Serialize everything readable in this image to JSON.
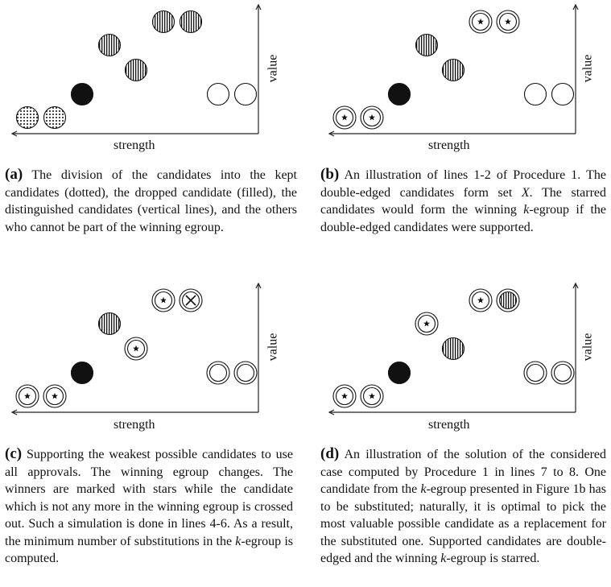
{
  "panels": [
    {
      "xlabel": "strength",
      "ylabel": "value",
      "caption_label": "(a)",
      "caption_html": "The division of the candidates into the kept candidates (dotted), the dropped candidate (filled), the distinguished candidates (vertical lines), and the others who cannot be part of the winning egroup.",
      "candidates": [
        {
          "style": "dotted",
          "ring": false,
          "mark": ""
        },
        {
          "style": "dotted",
          "ring": false,
          "mark": ""
        },
        {
          "style": "filled",
          "ring": false,
          "mark": ""
        },
        {
          "style": "vertical",
          "ring": false,
          "mark": ""
        },
        {
          "style": "vertical",
          "ring": false,
          "mark": ""
        },
        {
          "style": "vertical",
          "ring": false,
          "mark": ""
        },
        {
          "style": "vertical",
          "ring": false,
          "mark": ""
        },
        {
          "style": "empty",
          "ring": false,
          "mark": ""
        },
        {
          "style": "empty",
          "ring": false,
          "mark": ""
        }
      ]
    },
    {
      "xlabel": "strength",
      "ylabel": "value",
      "caption_label": "(b)",
      "caption_html": "An illustration of lines 1-2 of Procedure 1. The double-edged candidates form set <i>X</i>. The starred candidates would form the winning <i>k</i>-egroup if the double-edged candidates were supported.",
      "candidates": [
        {
          "style": "empty",
          "ring": true,
          "mark": "star"
        },
        {
          "style": "empty",
          "ring": true,
          "mark": "star"
        },
        {
          "style": "filled",
          "ring": false,
          "mark": ""
        },
        {
          "style": "vertical",
          "ring": false,
          "mark": ""
        },
        {
          "style": "vertical",
          "ring": false,
          "mark": ""
        },
        {
          "style": "empty",
          "ring": true,
          "mark": "star"
        },
        {
          "style": "empty",
          "ring": true,
          "mark": "star"
        },
        {
          "style": "empty",
          "ring": false,
          "mark": ""
        },
        {
          "style": "empty",
          "ring": false,
          "mark": ""
        }
      ]
    },
    {
      "xlabel": "strength",
      "ylabel": "value",
      "caption_label": "(c)",
      "caption_html": "Supporting the weakest possible candidates to use all approvals. The winning egroup changes. The winners are marked with stars while the candidate which is not any more in the winning egroup is crossed out. Such a simulation is done in lines 4-6. As a result, the minimum number of substitutions in the <i>k</i>-egroup is computed.",
      "candidates": [
        {
          "style": "empty",
          "ring": true,
          "mark": "star"
        },
        {
          "style": "empty",
          "ring": true,
          "mark": "star"
        },
        {
          "style": "filled",
          "ring": false,
          "mark": ""
        },
        {
          "style": "vertical",
          "ring": false,
          "mark": ""
        },
        {
          "style": "empty",
          "ring": true,
          "mark": "star"
        },
        {
          "style": "empty",
          "ring": true,
          "mark": "star"
        },
        {
          "style": "empty",
          "ring": true,
          "mark": "cross"
        },
        {
          "style": "empty",
          "ring": true,
          "mark": ""
        },
        {
          "style": "empty",
          "ring": true,
          "mark": ""
        }
      ]
    },
    {
      "xlabel": "strength",
      "ylabel": "value",
      "caption_label": "(d)",
      "caption_html": "An illustration of the solution of the considered case computed by Procedure 1 in lines 7 to 8. One candidate from the <i>k</i>-egroup presented in Figure 1b has to be substituted; naturally, it is optimal to pick the most valuable possible candidate as a replacement for the substituted one. Supported candidates are double-edged and the winning <i>k</i>-egroup is starred.",
      "candidates": [
        {
          "style": "empty",
          "ring": true,
          "mark": "star"
        },
        {
          "style": "empty",
          "ring": true,
          "mark": "star"
        },
        {
          "style": "filled",
          "ring": false,
          "mark": ""
        },
        {
          "style": "empty",
          "ring": true,
          "mark": "star"
        },
        {
          "style": "vertical",
          "ring": false,
          "mark": ""
        },
        {
          "style": "empty",
          "ring": true,
          "mark": "star"
        },
        {
          "style": "vertical",
          "ring": true,
          "mark": ""
        },
        {
          "style": "empty",
          "ring": true,
          "mark": ""
        },
        {
          "style": "empty",
          "ring": true,
          "mark": ""
        }
      ]
    }
  ]
}
